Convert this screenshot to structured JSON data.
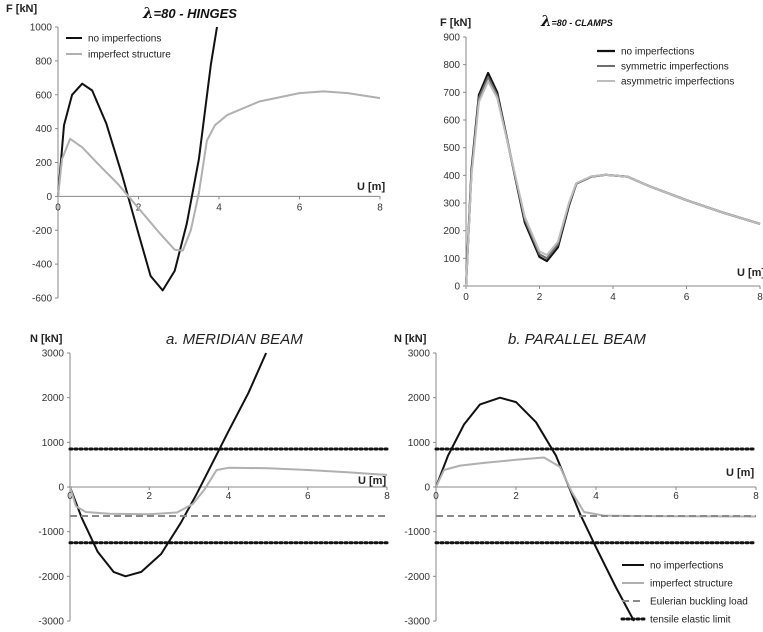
{
  "chart_data": [
    {
      "id": "tl",
      "type": "line",
      "title_symbol": "λ",
      "title": "=80 - HINGES",
      "ylabel": "F [kN]",
      "xlabel": "U [m]",
      "xlim": [
        0,
        8
      ],
      "ylim": [
        -600,
        1000
      ],
      "xticks": [
        0,
        2,
        4,
        6,
        8
      ],
      "yticks": [
        -600,
        -400,
        -200,
        0,
        200,
        400,
        600,
        800,
        1000
      ],
      "legend_position": "top-left",
      "series": [
        {
          "name": "no imperfections",
          "color": "#111111",
          "width": 2,
          "points": [
            [
              0,
              0
            ],
            [
              0.15,
              420
            ],
            [
              0.35,
              600
            ],
            [
              0.6,
              665
            ],
            [
              0.85,
              625
            ],
            [
              1.2,
              430
            ],
            [
              1.6,
              120
            ],
            [
              2.0,
              -220
            ],
            [
              2.3,
              -470
            ],
            [
              2.6,
              -555
            ],
            [
              2.9,
              -440
            ],
            [
              3.2,
              -160
            ],
            [
              3.5,
              220
            ],
            [
              3.8,
              780
            ],
            [
              3.95,
              1000
            ]
          ]
        },
        {
          "name": "imperfect structure",
          "color": "#b0b0b0",
          "width": 2,
          "points": [
            [
              0,
              0
            ],
            [
              0.1,
              220
            ],
            [
              0.3,
              340
            ],
            [
              0.6,
              290
            ],
            [
              1.0,
              190
            ],
            [
              1.5,
              70
            ],
            [
              2.0,
              -70
            ],
            [
              2.5,
              -210
            ],
            [
              2.9,
              -315
            ],
            [
              3.1,
              -320
            ],
            [
              3.3,
              -200
            ],
            [
              3.5,
              20
            ],
            [
              3.7,
              330
            ],
            [
              3.9,
              420
            ],
            [
              4.2,
              480
            ],
            [
              5.0,
              560
            ],
            [
              6.0,
              610
            ],
            [
              6.6,
              620
            ],
            [
              7.2,
              610
            ],
            [
              8.0,
              580
            ]
          ]
        }
      ]
    },
    {
      "id": "tr",
      "type": "line",
      "title_symbol": "λ",
      "title": "=80 - CLAMPS",
      "ylabel": "F [kN]",
      "xlabel": "U [m]",
      "xlim": [
        0,
        8
      ],
      "ylim": [
        0,
        900
      ],
      "xticks": [
        0,
        2,
        4,
        6,
        8
      ],
      "yticks": [
        0,
        100,
        200,
        300,
        400,
        500,
        600,
        700,
        800,
        900
      ],
      "legend_position": "top-right",
      "series": [
        {
          "name": "no imperfections",
          "color": "#111111",
          "width": 2.2,
          "points": [
            [
              0,
              0
            ],
            [
              0.15,
              420
            ],
            [
              0.35,
              690
            ],
            [
              0.6,
              770
            ],
            [
              0.85,
              700
            ],
            [
              1.2,
              480
            ],
            [
              1.6,
              230
            ],
            [
              2.0,
              105
            ],
            [
              2.2,
              90
            ],
            [
              2.5,
              140
            ],
            [
              2.8,
              290
            ],
            [
              3.0,
              370
            ],
            [
              3.4,
              395
            ],
            [
              3.8,
              402
            ],
            [
              4.4,
              395
            ],
            [
              5.0,
              360
            ],
            [
              6.0,
              310
            ],
            [
              7.0,
              265
            ],
            [
              8.0,
              225
            ]
          ]
        },
        {
          "name": "symmetric imperfections",
          "color": "#6e6e6e",
          "width": 2,
          "points": [
            [
              0,
              0
            ],
            [
              0.15,
              410
            ],
            [
              0.35,
              680
            ],
            [
              0.6,
              755
            ],
            [
              0.85,
              690
            ],
            [
              1.2,
              480
            ],
            [
              1.6,
              240
            ],
            [
              2.0,
              115
            ],
            [
              2.2,
              100
            ],
            [
              2.5,
              150
            ],
            [
              2.8,
              295
            ],
            [
              3.0,
              370
            ],
            [
              3.4,
              395
            ],
            [
              3.8,
              402
            ],
            [
              4.4,
              395
            ],
            [
              5.0,
              360
            ],
            [
              6.0,
              310
            ],
            [
              7.0,
              265
            ],
            [
              8.0,
              225
            ]
          ]
        },
        {
          "name": "asymmetric imperfections",
          "color": "#bdbdbd",
          "width": 2,
          "points": [
            [
              0,
              0
            ],
            [
              0.15,
              400
            ],
            [
              0.35,
              665
            ],
            [
              0.6,
              740
            ],
            [
              0.85,
              680
            ],
            [
              1.2,
              480
            ],
            [
              1.6,
              250
            ],
            [
              2.0,
              125
            ],
            [
              2.2,
              112
            ],
            [
              2.5,
              160
            ],
            [
              2.8,
              300
            ],
            [
              3.0,
              372
            ],
            [
              3.4,
              396
            ],
            [
              3.8,
              402
            ],
            [
              4.4,
              395
            ],
            [
              5.0,
              360
            ],
            [
              6.0,
              310
            ],
            [
              7.0,
              265
            ],
            [
              8.0,
              225
            ]
          ]
        }
      ]
    },
    {
      "id": "bl",
      "type": "line",
      "title": "a. MERIDIAN BEAM",
      "ylabel": "N [kN]",
      "xlabel": "U [m]",
      "xlim": [
        0,
        8
      ],
      "ylim": [
        -3000,
        3000
      ],
      "xticks": [
        0,
        2,
        4,
        6,
        8
      ],
      "yticks": [
        -3000,
        -2000,
        -1000,
        0,
        1000,
        2000,
        3000
      ],
      "series": [
        {
          "name": "no imperfections",
          "color": "#111111",
          "width": 2,
          "dash": "",
          "points": [
            [
              0,
              0
            ],
            [
              0.3,
              -700
            ],
            [
              0.7,
              -1450
            ],
            [
              1.1,
              -1900
            ],
            [
              1.4,
              -2000
            ],
            [
              1.8,
              -1900
            ],
            [
              2.3,
              -1500
            ],
            [
              2.8,
              -800
            ],
            [
              3.2,
              -150
            ],
            [
              3.6,
              550
            ],
            [
              4.0,
              1250
            ],
            [
              4.5,
              2100
            ],
            [
              4.95,
              3000
            ]
          ]
        },
        {
          "name": "imperfect structure",
          "color": "#b0b0b0",
          "width": 2,
          "dash": "",
          "points": [
            [
              0,
              0
            ],
            [
              0.15,
              -430
            ],
            [
              0.4,
              -560
            ],
            [
              1.0,
              -600
            ],
            [
              2.0,
              -610
            ],
            [
              2.7,
              -570
            ],
            [
              3.1,
              -380
            ],
            [
              3.4,
              -50
            ],
            [
              3.7,
              380
            ],
            [
              4.0,
              430
            ],
            [
              5.0,
              420
            ],
            [
              6.0,
              380
            ],
            [
              7.0,
              330
            ],
            [
              8.0,
              270
            ]
          ]
        },
        {
          "name": "Eulerian buckling load",
          "color": "#8a8a8a",
          "width": 2,
          "dash": "7,4",
          "points": [
            [
              0,
              -650
            ],
            [
              8,
              -650
            ]
          ]
        },
        {
          "name": "tensile elastic limit",
          "color": "#111111",
          "width": 3,
          "dash": "2,3",
          "points": [
            [
              0,
              850
            ],
            [
              8,
              850
            ]
          ]
        },
        {
          "name": "tensile elastic limit",
          "color": "#111111",
          "width": 3,
          "dash": "2,3",
          "points": [
            [
              0,
              -1250
            ],
            [
              8,
              -1250
            ]
          ]
        }
      ]
    },
    {
      "id": "br",
      "type": "line",
      "title": "b. PARALLEL BEAM",
      "ylabel": "N [kN]",
      "xlabel": "U [m]",
      "xlim": [
        0,
        8
      ],
      "ylim": [
        -3000,
        3000
      ],
      "xticks": [
        0,
        2,
        4,
        6,
        8
      ],
      "yticks": [
        -3000,
        -2000,
        -1000,
        0,
        1000,
        2000,
        3000
      ],
      "legend_position": "bottom-right",
      "series": [
        {
          "name": "no imperfections",
          "color": "#111111",
          "width": 2,
          "dash": "",
          "points": [
            [
              0,
              0
            ],
            [
              0.3,
              700
            ],
            [
              0.7,
              1400
            ],
            [
              1.1,
              1850
            ],
            [
              1.6,
              2000
            ],
            [
              2.0,
              1900
            ],
            [
              2.5,
              1450
            ],
            [
              3.0,
              700
            ],
            [
              3.3,
              50
            ],
            [
              3.6,
              -600
            ],
            [
              4.0,
              -1350
            ],
            [
              4.5,
              -2250
            ],
            [
              4.95,
              -3000
            ]
          ]
        },
        {
          "name": "imperfect structure",
          "color": "#b0b0b0",
          "width": 2,
          "dash": "",
          "points": [
            [
              0,
              0
            ],
            [
              0.2,
              380
            ],
            [
              0.6,
              480
            ],
            [
              1.2,
              540
            ],
            [
              2.0,
              610
            ],
            [
              2.7,
              660
            ],
            [
              3.1,
              450
            ],
            [
              3.4,
              -120
            ],
            [
              3.7,
              -560
            ],
            [
              4.2,
              -640
            ],
            [
              5.0,
              -650
            ],
            [
              6.0,
              -655
            ],
            [
              8.0,
              -660
            ]
          ]
        },
        {
          "name": "Eulerian buckling load",
          "color": "#8a8a8a",
          "width": 2,
          "dash": "7,4",
          "points": [
            [
              0,
              -650
            ],
            [
              8,
              -650
            ]
          ]
        },
        {
          "name": "tensile elastic limit",
          "color": "#111111",
          "width": 3,
          "dash": "2,3",
          "points": [
            [
              0,
              850
            ],
            [
              8,
              850
            ]
          ]
        },
        {
          "name": "tensile elastic limit",
          "color": "#111111",
          "width": 3,
          "dash": "2,3",
          "points": [
            [
              0,
              -1250
            ],
            [
              8,
              -1250
            ]
          ]
        }
      ]
    }
  ],
  "legends": {
    "tl": [
      "no imperfections",
      "imperfect structure"
    ],
    "tr": [
      "no imperfections",
      "symmetric imperfections",
      "asymmetric imperfections"
    ],
    "bottom": [
      "no imperfections",
      "imperfect structure",
      "Eulerian buckling load",
      "tensile elastic limit"
    ]
  }
}
